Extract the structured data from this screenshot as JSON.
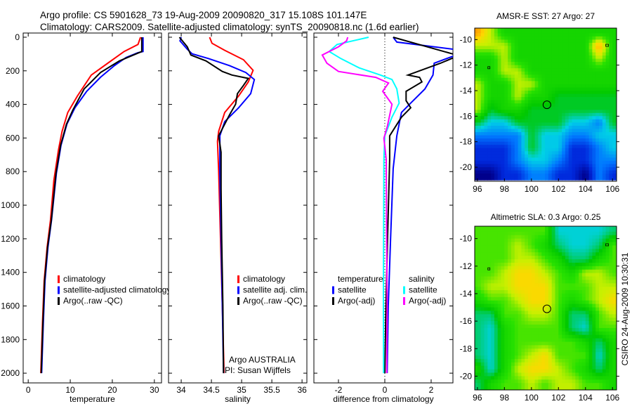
{
  "title_line1": "Argo profile: CS 5901628_73 19-Aug-2009 20090820_317 15.108S 101.147E",
  "title_line2": "Climatology: CARS2009. Satellite-adjusted climatology: synTS_20090818.nc (1.6d earlier)",
  "side_note": "CSIRO 24-Aug-2009 10:30:31",
  "colors": {
    "red": "#ff0000",
    "blue": "#0000ff",
    "black": "#000000",
    "cyan": "#00ffff",
    "magenta": "#ff00ff"
  },
  "chart_data": [
    {
      "type": "line",
      "xlabel": "temperature",
      "ylabel": "depth",
      "xlim": [
        -1.2,
        31.7
      ],
      "ylim": [
        2058,
        -25
      ],
      "xticks": [
        0,
        10,
        20,
        30
      ],
      "yticks": [
        0,
        200,
        400,
        600,
        800,
        1000,
        1200,
        1400,
        1600,
        1800,
        2000
      ],
      "legend": [
        "climatology",
        "satellite-adjusted climatology",
        "Argo(..raw -QC)"
      ],
      "series": [
        {
          "name": "climatology",
          "color": "red",
          "points": [
            [
              26.7,
              0
            ],
            [
              26.1,
              43
            ],
            [
              22.8,
              85
            ],
            [
              18.9,
              155
            ],
            [
              15,
              225
            ],
            [
              11.7,
              350
            ],
            [
              9.4,
              448
            ],
            [
              8.05,
              560
            ],
            [
              7.2,
              670
            ],
            [
              6.1,
              852
            ],
            [
              5.3,
              1088
            ],
            [
              4.5,
              1250
            ],
            [
              3.8,
              1450
            ],
            [
              3.4,
              1700
            ],
            [
              3.0,
              2000
            ]
          ]
        },
        {
          "name": "satellite-adjusted climatology",
          "color": "blue",
          "points": [
            [
              27.3,
              0
            ],
            [
              27.3,
              85
            ],
            [
              26.1,
              92
            ],
            [
              23.3,
              120
            ],
            [
              20.5,
              169
            ],
            [
              17.2,
              238
            ],
            [
              13.9,
              322
            ],
            [
              11.1,
              420
            ],
            [
              9.2,
              517
            ],
            [
              7.8,
              643
            ],
            [
              6.7,
              810
            ],
            [
              5.55,
              1088
            ],
            [
              4.7,
              1250
            ],
            [
              4.0,
              1450
            ],
            [
              3.6,
              1700
            ],
            [
              3.2,
              2000
            ]
          ]
        },
        {
          "name": "Argo(..raw -QC)",
          "color": "black",
          "points": [
            [
              27.0,
              0
            ],
            [
              27.0,
              85
            ],
            [
              21.7,
              141
            ],
            [
              17.2,
              210
            ],
            [
              13.3,
              308
            ],
            [
              10.6,
              434
            ],
            [
              9.1,
              517
            ],
            [
              7.7,
              643
            ],
            [
              6.6,
              810
            ],
            [
              5.5,
              1088
            ],
            [
              4.6,
              1250
            ],
            [
              3.9,
              1450
            ],
            [
              3.5,
              1700
            ],
            [
              3.1,
              2000
            ]
          ]
        }
      ]
    },
    {
      "type": "line",
      "xlabel": "salinity",
      "xlim": [
        33.79,
        36.08
      ],
      "ylim": [
        2058,
        -25
      ],
      "xticks": [
        34,
        34.5,
        35,
        35.5,
        36
      ],
      "legend": [
        "climatology",
        "satellite adj. clim.",
        "Argo(..raw -QC)"
      ],
      "annotation": [
        "Argo AUSTRALIA",
        "PI: Susan Wijffels"
      ],
      "series": [
        {
          "name": "climatology",
          "color": "red",
          "points": [
            [
              34.47,
              0
            ],
            [
              34.51,
              36
            ],
            [
              34.72,
              78
            ],
            [
              35.03,
              134
            ],
            [
              35.19,
              197
            ],
            [
              35.11,
              266
            ],
            [
              34.95,
              350
            ],
            [
              34.72,
              448
            ],
            [
              34.62,
              560
            ],
            [
              34.6,
              620
            ],
            [
              34.62,
              800
            ],
            [
              34.65,
              1200
            ],
            [
              34.68,
              1600
            ],
            [
              34.71,
              2000
            ]
          ]
        },
        {
          "name": "satellite adj. clim.",
          "color": "blue",
          "points": [
            [
              34.0,
              0
            ],
            [
              33.98,
              22
            ],
            [
              34.1,
              71
            ],
            [
              34.18,
              99
            ],
            [
              34.45,
              127
            ],
            [
              34.8,
              169
            ],
            [
              35.07,
              210
            ],
            [
              35.21,
              252
            ],
            [
              35.15,
              336
            ],
            [
              34.95,
              420
            ],
            [
              34.72,
              503
            ],
            [
              34.64,
              587
            ],
            [
              34.64,
              800
            ],
            [
              34.66,
              1200
            ],
            [
              34.68,
              1600
            ],
            [
              34.7,
              2000
            ]
          ]
        },
        {
          "name": "Argo(..raw -QC)",
          "color": "black",
          "points": [
            [
              33.97,
              0
            ],
            [
              34.1,
              57
            ],
            [
              34.16,
              106
            ],
            [
              34.41,
              141
            ],
            [
              34.68,
              204
            ],
            [
              34.84,
              225
            ],
            [
              35.11,
              245
            ],
            [
              35.03,
              287
            ],
            [
              34.93,
              336
            ],
            [
              34.9,
              399
            ],
            [
              34.8,
              462
            ],
            [
              34.62,
              587
            ],
            [
              34.66,
              685
            ],
            [
              34.66,
              900
            ],
            [
              34.67,
              1200
            ],
            [
              34.69,
              1600
            ],
            [
              34.7,
              2000
            ]
          ]
        }
      ]
    },
    {
      "type": "line",
      "xlabel": "difference from climatology",
      "xlim": [
        -3.06,
        2.94
      ],
      "ylim": [
        2058,
        -25
      ],
      "xticks": [
        -2,
        0,
        2
      ],
      "legend_headers": [
        "temperature",
        "salinity"
      ],
      "legend": [
        "satellite",
        "Argo(-adj)",
        "satellite",
        "Argo(-adj)"
      ],
      "series": [
        {
          "name": "temperature satellite",
          "color": "blue",
          "points": [
            [
              0.36,
              0
            ],
            [
              0.52,
              29
            ],
            [
              2.94,
              71
            ],
            [
              3.2,
              90
            ],
            [
              2.94,
              113
            ],
            [
              2.13,
              155
            ],
            [
              2.08,
              225
            ],
            [
              1.73,
              308
            ],
            [
              1.12,
              392
            ],
            [
              0.72,
              448
            ],
            [
              0.52,
              587
            ],
            [
              0.36,
              782
            ],
            [
              0.25,
              1200
            ],
            [
              0.15,
              1600
            ],
            [
              0.1,
              2000
            ]
          ]
        },
        {
          "name": "temperature Argo(-adj)",
          "color": "black",
          "points": [
            [
              0.36,
              0
            ],
            [
              3.2,
              110
            ],
            [
              2.9,
              126
            ],
            [
              2.4,
              155
            ],
            [
              1.0,
              225
            ],
            [
              1.5,
              239
            ],
            [
              1.6,
              266
            ],
            [
              0.92,
              322
            ],
            [
              0.92,
              378
            ],
            [
              1.12,
              420
            ],
            [
              0.72,
              476
            ],
            [
              0.21,
              587
            ],
            [
              0.21,
              727
            ],
            [
              0.12,
              1200
            ],
            [
              0.05,
              1600
            ],
            [
              0.0,
              2000
            ]
          ]
        },
        {
          "name": "salinity satellite",
          "color": "cyan",
          "points": [
            [
              -0.7,
              0
            ],
            [
              -2.06,
              43
            ],
            [
              -2.4,
              85
            ],
            [
              -1.9,
              127
            ],
            [
              -1.1,
              183
            ],
            [
              -0.19,
              225
            ],
            [
              0.31,
              252
            ],
            [
              0.52,
              308
            ],
            [
              0.62,
              392
            ],
            [
              0.31,
              476
            ],
            [
              0.0,
              587
            ],
            [
              -0.04,
              727
            ],
            [
              -0.05,
              1200
            ],
            [
              -0.06,
              1600
            ],
            [
              -0.05,
              2000
            ]
          ]
        },
        {
          "name": "salinity Argo(-adj)",
          "color": "magenta",
          "points": [
            [
              -1.6,
              0
            ],
            [
              -1.65,
              22
            ],
            [
              -2.0,
              57
            ],
            [
              -2.7,
              106
            ],
            [
              -2.5,
              155
            ],
            [
              -2.0,
              204
            ],
            [
              -0.39,
              239
            ],
            [
              0.16,
              273
            ],
            [
              -0.09,
              322
            ],
            [
              0.31,
              399
            ],
            [
              0.11,
              531
            ],
            [
              -0.04,
              601
            ],
            [
              0.06,
              727
            ],
            [
              0.08,
              1200
            ],
            [
              0.1,
              1600
            ],
            [
              0.08,
              2000
            ]
          ]
        }
      ]
    },
    {
      "type": "heatmap",
      "title": "AMSR-E SST: 27 Argo: 27",
      "xlim": [
        95.8,
        106.3
      ],
      "ylim": [
        -21.1,
        -9.1
      ],
      "xticks": [
        96,
        98,
        100,
        102,
        104,
        106
      ],
      "yticks": [
        -10,
        -12,
        -14,
        -16,
        -18,
        -20
      ],
      "lon": [
        96,
        97,
        98,
        99,
        100,
        101,
        102,
        103,
        104,
        105,
        106
      ],
      "lat": [
        -9.5,
        -10.5,
        -11.5,
        -12.5,
        -13.5,
        -14.5,
        -15.5,
        -16.5,
        -17.5,
        -18.5,
        -19.5,
        -20.5
      ],
      "crange": [
        24.8,
        28.0
      ],
      "values": [
        [
          28,
          27.5,
          27,
          27,
          27,
          27,
          27,
          27,
          27,
          27,
          27
        ],
        [
          27.5,
          27.5,
          27.5,
          27,
          27,
          27,
          27,
          27,
          27,
          28,
          27
        ],
        [
          27,
          27,
          27.5,
          27,
          27,
          27,
          27,
          27,
          27,
          27.5,
          27
        ],
        [
          27,
          27,
          27.5,
          27.5,
          27,
          27,
          27,
          27,
          27,
          27,
          27
        ],
        [
          27.5,
          27,
          27,
          27.5,
          27.5,
          27,
          27,
          27,
          27,
          27,
          27
        ],
        [
          27.5,
          27,
          27,
          27.5,
          27,
          27,
          26.7,
          26.7,
          26.7,
          26.7,
          26.7
        ],
        [
          27.5,
          26.7,
          27,
          27,
          26.7,
          26.7,
          26.7,
          26.7,
          26.7,
          26.7,
          26.7
        ],
        [
          26.7,
          26.2,
          26.2,
          26.7,
          26.7,
          26.7,
          26.7,
          26.2,
          26.2,
          25.8,
          26.7
        ],
        [
          25.8,
          25.8,
          25.8,
          25.8,
          26.7,
          26.2,
          26.2,
          25.8,
          25.8,
          26.2,
          26.2
        ],
        [
          25.3,
          25.3,
          25.3,
          25.8,
          26.7,
          26.2,
          26.2,
          25.3,
          25.3,
          25.8,
          26.2
        ],
        [
          25.3,
          25.3,
          25.3,
          25.8,
          26.2,
          26.2,
          25.8,
          25.3,
          25.3,
          25.8,
          25.8
        ],
        [
          24.8,
          24.8,
          25.3,
          25.3,
          25.8,
          25.8,
          25.3,
          25.3,
          24.8,
          25.8,
          25.3
        ]
      ],
      "marker": {
        "lon": 101.147,
        "lat": -15.108
      }
    },
    {
      "type": "heatmap",
      "title": "Altimetric SLA: 0.3 Argo: 0.25",
      "xlim": [
        95.8,
        106.3
      ],
      "ylim": [
        -21.0,
        -9.1
      ],
      "xticks": [
        96,
        98,
        100,
        102,
        104,
        106
      ],
      "yticks": [
        -10,
        -12,
        -14,
        -16,
        -18,
        -20
      ],
      "lon": [
        96,
        97,
        98,
        99,
        100,
        101,
        102,
        103,
        104,
        105,
        106
      ],
      "lat": [
        -9.5,
        -10.5,
        -11.5,
        -12.5,
        -13.5,
        -14.5,
        -15.5,
        -16.5,
        -17.5,
        -18.5,
        -19.5,
        -20.5
      ],
      "crange": [
        -0.25,
        0.4
      ],
      "values": [
        [
          0.25,
          0.25,
          0.25,
          0.25,
          0.25,
          0.25,
          0.05,
          0.05,
          0.05,
          0.05,
          0.1
        ],
        [
          0.25,
          0.25,
          0.25,
          0.3,
          0.25,
          0.2,
          0.1,
          0.05,
          0.05,
          0.1,
          0.25
        ],
        [
          0.25,
          0.25,
          0.25,
          0.3,
          0.3,
          0.25,
          0.2,
          0.1,
          0.1,
          0.2,
          0.25
        ],
        [
          0.25,
          0.25,
          0.3,
          0.35,
          0.35,
          0.3,
          0.25,
          0.2,
          0.3,
          0.3,
          0.25
        ],
        [
          0.25,
          0.3,
          0.3,
          0.35,
          0.35,
          0.35,
          0.25,
          0.25,
          0.25,
          0.3,
          0.3
        ],
        [
          0.2,
          0.25,
          0.25,
          0.3,
          0.35,
          0.35,
          0.25,
          0.2,
          0.25,
          0.3,
          0.35
        ],
        [
          0.1,
          0.1,
          0.25,
          0.25,
          0.3,
          0.3,
          0.25,
          0.1,
          0.1,
          0.25,
          0.3
        ],
        [
          0.1,
          0.05,
          0.2,
          0.25,
          0.25,
          0.25,
          0.25,
          0.1,
          0.05,
          0.25,
          0.25
        ],
        [
          0.1,
          0.05,
          0.2,
          0.25,
          0.25,
          0.25,
          0.25,
          0.25,
          0.2,
          0.1,
          0.2
        ],
        [
          0.1,
          0.05,
          0.2,
          0.25,
          0.3,
          0.35,
          0.25,
          0.25,
          0.25,
          0.05,
          0.2
        ],
        [
          0.2,
          0.05,
          0.2,
          0.3,
          0.35,
          0.35,
          0.3,
          0.25,
          0.2,
          0.1,
          0.2
        ],
        [
          0.1,
          0.2,
          0.25,
          0.25,
          0.3,
          0.25,
          0.3,
          0.3,
          0.25,
          0.25,
          0.2
        ]
      ],
      "marker": {
        "lon": 101.147,
        "lat": -15.108
      }
    }
  ]
}
